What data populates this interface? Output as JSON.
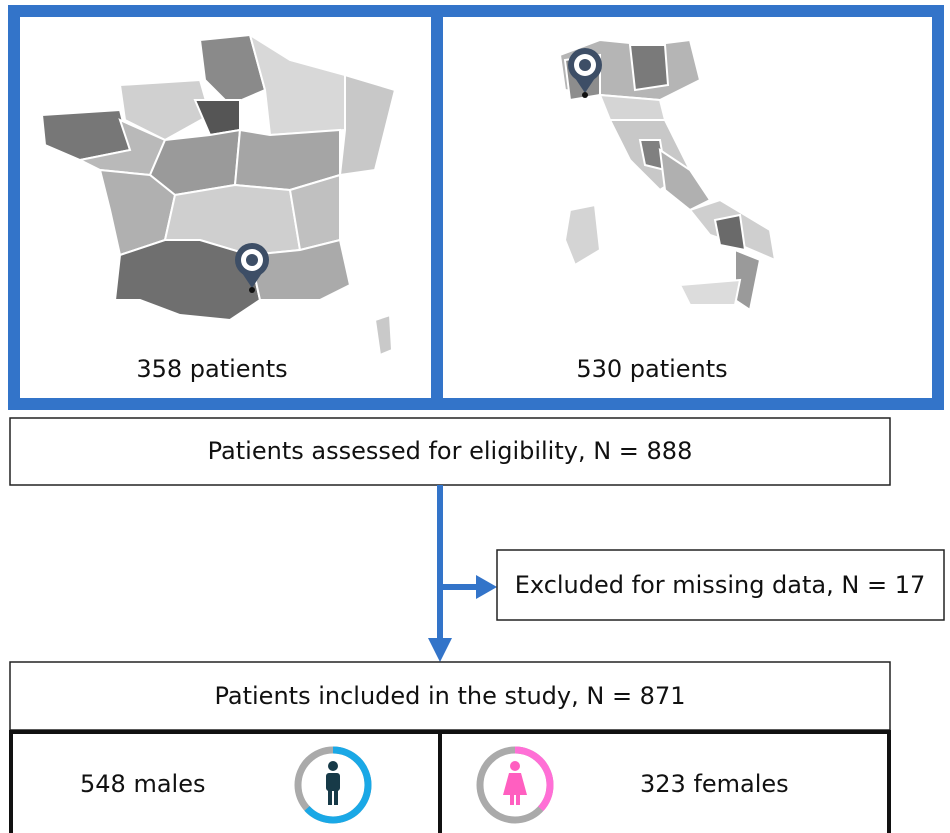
{
  "panels": {
    "france": {
      "label": "358 patients"
    },
    "italy": {
      "label": "530 patients"
    }
  },
  "boxes": {
    "eligibility": "Patients assessed for eligibility, N = 888",
    "excluded": "Excluded for missing data, N = 17",
    "included": "Patients included in the study, N = 871",
    "males": "548 males",
    "females": "323 females"
  }
}
